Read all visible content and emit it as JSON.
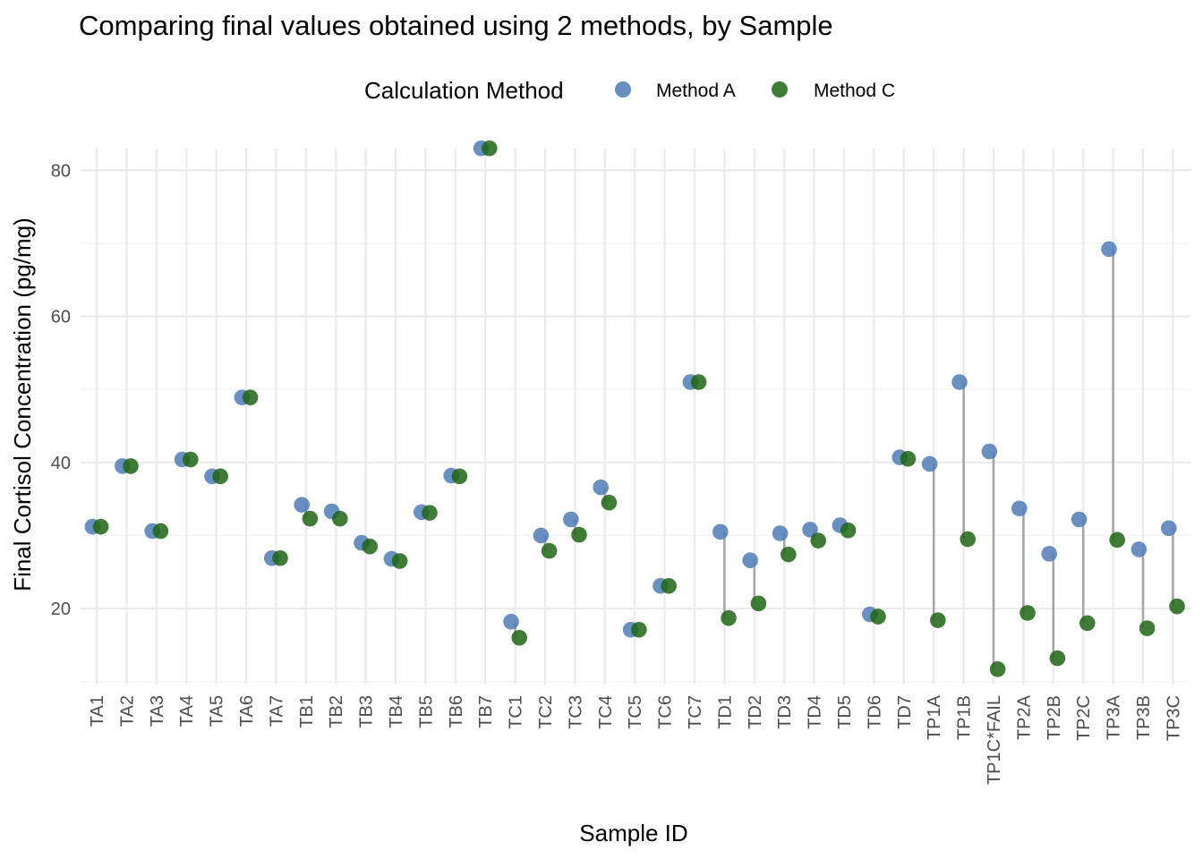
{
  "chart_data": {
    "type": "scatter",
    "title": "Comparing final values obtained using 2 methods, by Sample",
    "xlabel": "Sample ID",
    "ylabel": "Final Cortisol Concentration (pg/mg)",
    "ylim": [
      9.6,
      86.4
    ],
    "yticks": [
      20,
      40,
      60,
      80
    ],
    "grid": true,
    "legend": {
      "title": "Calculation Method",
      "position": "top"
    },
    "categories": [
      "TA1",
      "TA2",
      "TA3",
      "TA4",
      "TA5",
      "TA6",
      "TA7",
      "TB1",
      "TB2",
      "TB3",
      "TB4",
      "TB5",
      "TB6",
      "TB7",
      "TC1",
      "TC2",
      "TC3",
      "TC4",
      "TC5",
      "TC6",
      "TC7",
      "TD1",
      "TD2",
      "TD3",
      "TD4",
      "TD5",
      "TD6",
      "TD7",
      "TP1A",
      "TP1B",
      "TP1C*FAIL",
      "TP2A",
      "TP2B",
      "TP2C",
      "TP3A",
      "TP3B",
      "TP3C"
    ],
    "series": [
      {
        "name": "Method A",
        "color": "#4f7db5",
        "values": [
          31.2,
          39.5,
          30.6,
          40.4,
          38.1,
          48.9,
          26.9,
          34.2,
          33.3,
          29.0,
          26.8,
          33.2,
          38.2,
          83.0,
          18.2,
          30.0,
          32.2,
          36.6,
          17.1,
          23.1,
          51.0,
          30.5,
          26.6,
          30.3,
          30.8,
          31.4,
          19.2,
          40.7,
          39.8,
          51.0,
          41.5,
          33.7,
          27.5,
          32.2,
          69.2,
          28.1,
          31.0
        ]
      },
      {
        "name": "Method C",
        "color": "#1e6414",
        "values": [
          31.2,
          39.5,
          30.6,
          40.4,
          38.1,
          48.9,
          26.9,
          32.3,
          32.3,
          28.5,
          26.5,
          33.1,
          38.1,
          83.0,
          16.0,
          27.9,
          30.1,
          34.5,
          17.1,
          23.1,
          51.0,
          18.7,
          20.7,
          27.4,
          29.3,
          30.7,
          18.9,
          40.5,
          18.4,
          29.5,
          11.7,
          19.4,
          13.2,
          18.0,
          29.4,
          17.3,
          20.3
        ]
      }
    ]
  }
}
